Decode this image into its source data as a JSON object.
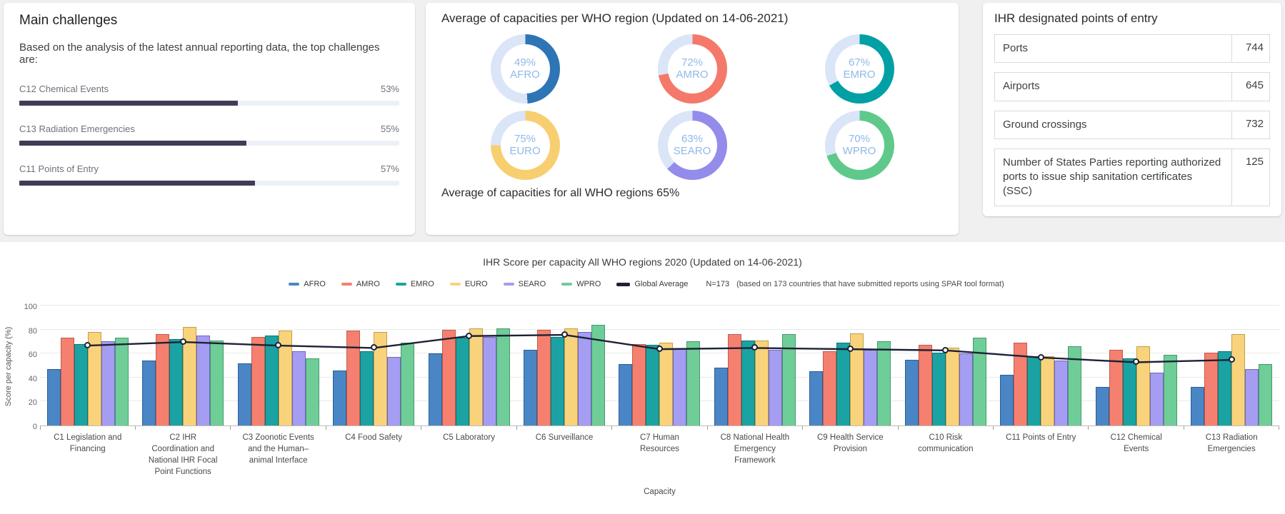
{
  "page": {
    "background": "#f0f0f1",
    "card_background": "#ffffff"
  },
  "chart_data": [
    {
      "id": "main-challenges",
      "type": "bar",
      "orientation": "horizontal",
      "title": "Main challenges",
      "subtitle": "Based on the analysis of the latest annual reporting data, the top challenges are:",
      "categories": [
        "C12 Chemical Events",
        "C13 Radiation Emergencies",
        "C11 Points of Entry"
      ],
      "values": [
        53,
        55,
        57
      ],
      "value_labels": [
        "53%",
        "55%",
        "57%"
      ],
      "xlim": [
        0,
        92
      ],
      "bar_color": "#3f3d56",
      "track_color": "#edf1f7",
      "grid": false
    },
    {
      "id": "region-capacity-donuts",
      "type": "pie",
      "title": "Average of capacities per WHO region (Updated on 14-06-2021)",
      "footer": "Average of capacities for all WHO regions 65%",
      "slices": [
        {
          "label": "AFRO",
          "value": 49,
          "display": "49%",
          "color": "#2e75b5"
        },
        {
          "label": "AMRO",
          "value": 72,
          "display": "72%",
          "color": "#f4796a"
        },
        {
          "label": "EMRO",
          "value": 67,
          "display": "67%",
          "color": "#00a0a5"
        },
        {
          "label": "EURO",
          "value": 75,
          "display": "75%",
          "color": "#f8cf70"
        },
        {
          "label": "SEARO",
          "value": 63,
          "display": "63%",
          "color": "#938ceb"
        },
        {
          "label": "WPRO",
          "value": 70,
          "display": "70%",
          "color": "#5fc98b"
        }
      ],
      "track_color": "#dbe5f8",
      "label_color": "#8fb9e8"
    },
    {
      "id": "points-of-entry",
      "type": "table",
      "title": "IHR designated points of entry",
      "rows": [
        {
          "label": "Ports",
          "value": "744"
        },
        {
          "label": "Airports",
          "value": "645"
        },
        {
          "label": "Ground crossings",
          "value": "732"
        },
        {
          "label": "Number of States Parties reporting authorized ports to issue ship sanitation certificates (SSC)",
          "value": "125"
        }
      ]
    },
    {
      "id": "ihr-score-per-capacity",
      "type": "bar",
      "title": "IHR Score per capacity All WHO regions 2020  (Updated on 14-06-2021)",
      "xlabel": "Capacity",
      "ylabel": "Score per capacity (%)",
      "ylim": [
        0,
        100
      ],
      "yticks": [
        0,
        20,
        40,
        60,
        80,
        100
      ],
      "grid": true,
      "legend_position": "top",
      "legend_note": "N=173",
      "legend_note_detail": "(based on 173 countries that have submitted reports using SPAR tool format)",
      "categories": [
        "C1 Legislation and Financing",
        "C2 IHR Coordination and National IHR Focal Point Functions",
        "C3 Zoonotic Events and the Human–animal Interface",
        "C4 Food Safety",
        "C5 Laboratory",
        "C6 Surveillance",
        "C7 Human Resources",
        "C8 National Health Emergency Framework",
        "C9 Health Service Provision",
        "C10 Risk communication",
        "C11 Points of Entry",
        "C12 Chemical Events",
        "C13 Radiation Emergencies"
      ],
      "series": [
        {
          "name": "AFRO",
          "color": "#4a86c5",
          "border": "#2c5d96",
          "values": [
            47,
            54,
            52,
            46,
            60,
            63,
            51,
            48,
            45,
            55,
            42,
            32,
            32
          ]
        },
        {
          "name": "AMRO",
          "color": "#f5806f",
          "border": "#c25a4b",
          "values": [
            73,
            76,
            74,
            79,
            80,
            80,
            68,
            76,
            62,
            67,
            69,
            63,
            61
          ]
        },
        {
          "name": "EMRO",
          "color": "#1ba3a3",
          "border": "#0d7474",
          "values": [
            68,
            72,
            75,
            62,
            73,
            74,
            67,
            71,
            69,
            61,
            58,
            56,
            62
          ]
        },
        {
          "name": "EURO",
          "color": "#f9d37b",
          "border": "#c39e4a",
          "values": [
            78,
            82,
            79,
            78,
            81,
            81,
            69,
            71,
            77,
            65,
            58,
            66,
            76
          ]
        },
        {
          "name": "SEARO",
          "color": "#a49df1",
          "border": "#6f67bd",
          "values": [
            70,
            75,
            62,
            57,
            74,
            78,
            64,
            63,
            63,
            60,
            54,
            44,
            47
          ]
        },
        {
          "name": "WPRO",
          "color": "#6fcd98",
          "border": "#459a6c",
          "values": [
            73,
            71,
            56,
            69,
            81,
            84,
            70,
            76,
            70,
            73,
            66,
            59,
            51
          ]
        }
      ],
      "line_series": {
        "name": "Global Average",
        "color": "#1c2237",
        "values": [
          67,
          70,
          67,
          65,
          75,
          76,
          64,
          65,
          64,
          63,
          57,
          53,
          55
        ]
      }
    }
  ]
}
